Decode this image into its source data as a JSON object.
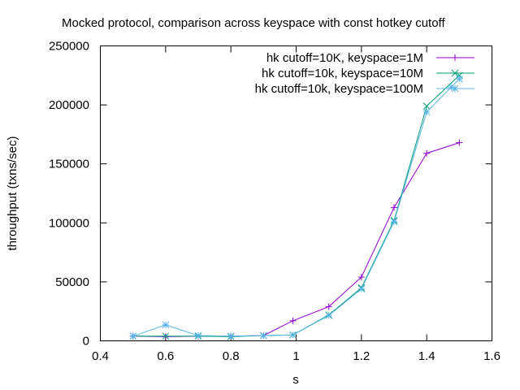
{
  "chart_data": {
    "type": "line",
    "title": "Mocked protocol, comparison across keyspace with const hotkey cutoff",
    "xlabel": "s",
    "ylabel": "throughput (txns/sec)",
    "xlim": [
      0.4,
      1.6
    ],
    "ylim": [
      0,
      250000
    ],
    "xticks": [
      "0.4",
      "0.6",
      "0.8",
      "1",
      "1.2",
      "1.4",
      "1.6"
    ],
    "yticks": [
      "0",
      "50000",
      "100000",
      "150000",
      "200000",
      "250000"
    ],
    "grid": false,
    "legend_position": "top-right",
    "series": [
      {
        "name": "hk cutoff=10K, keyspace=1M",
        "color": "#9400d3",
        "marker": "plus",
        "x": [
          0.5,
          0.6,
          0.7,
          0.8,
          0.9,
          0.99,
          1.1,
          1.2,
          1.3,
          1.4,
          1.5
        ],
        "y": [
          4000,
          3500,
          4000,
          4000,
          4500,
          17000,
          29000,
          54000,
          113000,
          159000,
          168000
        ]
      },
      {
        "name": "hk cutoff=10k, keyspace=10M",
        "color": "#009e73",
        "marker": "cross",
        "x": [
          0.5,
          0.6,
          0.7,
          0.8,
          0.9,
          0.99,
          1.1,
          1.2,
          1.3,
          1.4,
          1.5
        ],
        "y": [
          4000,
          4000,
          4000,
          3500,
          4500,
          5000,
          22000,
          45000,
          102000,
          199000,
          225000
        ]
      },
      {
        "name": "hk cutoff=10k, keyspace=100M",
        "color": "#56b4e9",
        "marker": "star",
        "x": [
          0.5,
          0.6,
          0.7,
          0.8,
          0.9,
          0.99,
          1.1,
          1.2,
          1.3,
          1.4,
          1.475,
          1.5
        ],
        "y": [
          4000,
          13500,
          4500,
          4000,
          4500,
          5000,
          21500,
          44000,
          101000,
          194000,
          215000,
          222000
        ]
      }
    ]
  }
}
